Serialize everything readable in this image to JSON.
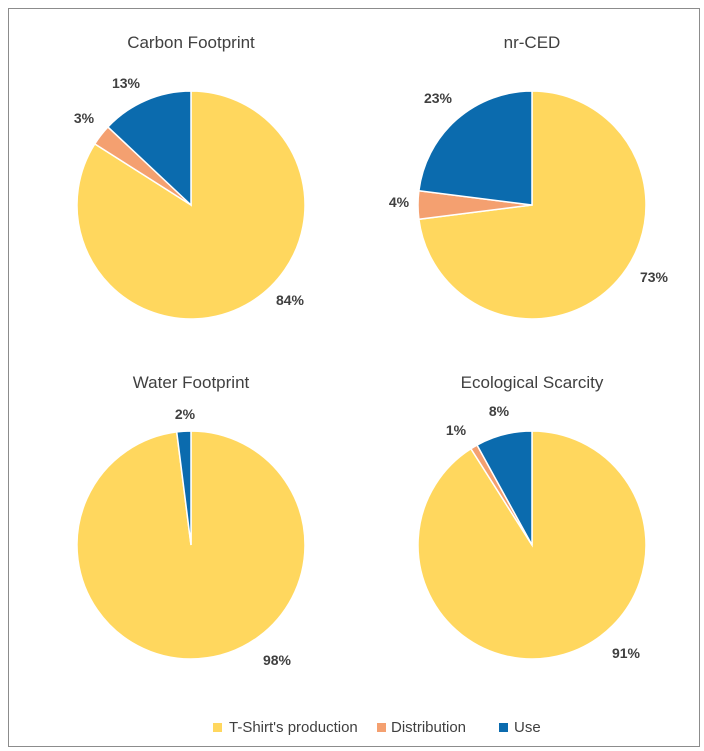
{
  "colors": {
    "T-Shirt's production": "#FFD75E",
    "Distribution": "#F4A070",
    "Use": "#0B6BAE"
  },
  "legend": {
    "placement": "bottom",
    "items": [
      {
        "label": "T-Shirt's production",
        "color": "#FFD75E"
      },
      {
        "label": "Distribution",
        "color": "#F4A070"
      },
      {
        "label": "Use",
        "color": "#0B6BAE"
      }
    ]
  },
  "chart_data": [
    {
      "type": "pie",
      "title": "Carbon Footprint",
      "slices": [
        {
          "name": "T-Shirt's production",
          "value": 84,
          "label": "84%"
        },
        {
          "name": "Distribution",
          "value": 3,
          "label": "3%"
        },
        {
          "name": "Use",
          "value": 13,
          "label": "13%"
        }
      ]
    },
    {
      "type": "pie",
      "title": "nr-CED",
      "slices": [
        {
          "name": "T-Shirt's production",
          "value": 73,
          "label": "73%"
        },
        {
          "name": "Distribution",
          "value": 4,
          "label": "4%"
        },
        {
          "name": "Use",
          "value": 23,
          "label": "23%"
        }
      ]
    },
    {
      "type": "pie",
      "title": "Water Footprint",
      "slices": [
        {
          "name": "T-Shirt's production",
          "value": 98,
          "label": "98%"
        },
        {
          "name": "Distribution",
          "value": 0,
          "label": ""
        },
        {
          "name": "Use",
          "value": 2,
          "label": "2%"
        }
      ]
    },
    {
      "type": "pie",
      "title": "Ecological Scarcity",
      "slices": [
        {
          "name": "T-Shirt's production",
          "value": 91,
          "label": "91%"
        },
        {
          "name": "Distribution",
          "value": 1,
          "label": "1%"
        },
        {
          "name": "Use",
          "value": 8,
          "label": "8%"
        }
      ]
    }
  ]
}
